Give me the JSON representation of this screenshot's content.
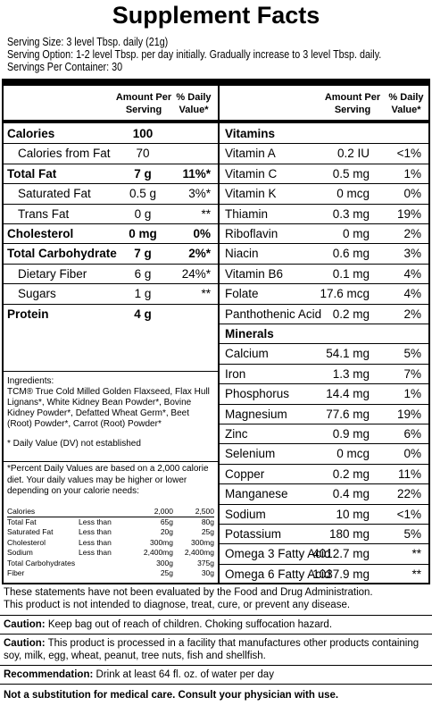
{
  "title": "Supplement Facts",
  "serving": [
    "Serving Size: 3 level Tbsp. daily (21g)",
    "Serving Option: 1-2 level Tbsp. per day initially. Gradually increase to 3 level Tbsp. daily.",
    "Servings Per Container: 30"
  ],
  "left": {
    "headers": [
      "Amount Per Serving",
      "% Daily Value*"
    ],
    "rows": [
      {
        "name": "Calories",
        "amount": "100"
      },
      {
        "name": "Calories from Fat",
        "amount": "70"
      },
      {
        "name": "Total Fat",
        "amount": "7 g",
        "dv": "11%*"
      },
      {
        "name": "Saturated Fat",
        "amount": "0.5 g",
        "dv": "3%*"
      },
      {
        "name": "Trans Fat",
        "amount": "0 g",
        "dv": "**"
      },
      {
        "name": "Cholesterol",
        "amount": "0 mg",
        "dv": "0%"
      },
      {
        "name": "Total Carbohydrate",
        "amount": "7 g",
        "dv": "2%*"
      },
      {
        "name": "Dietary Fiber",
        "amount": "6 g",
        "dv": "24%*"
      },
      {
        "name": "Sugars",
        "amount": "1 g",
        "dv": "**"
      },
      {
        "name": "Protein",
        "amount": "4 g"
      }
    ]
  },
  "right": {
    "headers": [
      "Amount Per Serving",
      "% Daily Value*"
    ],
    "vitamins_title": "Vitamins",
    "vitamins": [
      {
        "name": "Vitamin A",
        "amount": "0.2 IU",
        "dv": "<1%"
      },
      {
        "name": "Vitamin C",
        "amount": "0.5 mg",
        "dv": "1%"
      },
      {
        "name": "Vitamin K",
        "amount": "0 mcg",
        "dv": "0%"
      },
      {
        "name": "Thiamin",
        "amount": "0.3 mg",
        "dv": "19%"
      },
      {
        "name": "Riboflavin",
        "amount": "0 mg",
        "dv": "2%"
      },
      {
        "name": "Niacin",
        "amount": "0.6 mg",
        "dv": "3%"
      },
      {
        "name": "Vitamin B6",
        "amount": "0.1 mg",
        "dv": "4%"
      },
      {
        "name": "Folate",
        "amount": "17.6 mcg",
        "dv": "4%"
      },
      {
        "name": "Panthothenic Acid",
        "amount": "0.2 mg",
        "dv": "2%"
      }
    ],
    "minerals_title": "Minerals",
    "minerals": [
      {
        "name": "Calcium",
        "amount": "54.1 mg",
        "dv": "5%"
      },
      {
        "name": "Iron",
        "amount": "1.3 mg",
        "dv": "7%"
      },
      {
        "name": "Phosphorus",
        "amount": "14.4 mg",
        "dv": "1%"
      },
      {
        "name": "Magnesium",
        "amount": "77.6 mg",
        "dv": "19%"
      },
      {
        "name": "Zinc",
        "amount": "0.9 mg",
        "dv": "6%"
      },
      {
        "name": "Selenium",
        "amount": "0 mcg",
        "dv": "0%"
      },
      {
        "name": "Copper",
        "amount": "0.2 mg",
        "dv": "11%"
      },
      {
        "name": "Manganese",
        "amount": "0.4 mg",
        "dv": "22%"
      },
      {
        "name": "Sodium",
        "amount": "10 mg",
        "dv": "<1%"
      },
      {
        "name": "Potassium",
        "amount": "180 mg",
        "dv": "5%"
      },
      {
        "name": "Omega 3 Fatty Acid",
        "amount": "4012.7 mg",
        "dv": "**"
      },
      {
        "name": "Omega 6 Fatty Acid",
        "amount": "1037.9 mg",
        "dv": "**"
      }
    ]
  },
  "ingredients": {
    "label": "Ingredients:",
    "text": "TCM® True Cold Milled Golden Flaxseed, Flax Hull Lignans*, White Kidney Bean Powder*, Bovine Kidney Powder*, Defatted Wheat Germ*, Beet (Root) Powder*, Carrot (Root) Powder*",
    "note": "* Daily Value (DV) not established"
  },
  "footnote": {
    "text": "*Percent Daily Values are based on a 2,000 calorie diet. Your daily values may be higher or lower depending on your calorie needs:",
    "rows": [
      {
        "name": "Calories",
        "values": [
          "2,000",
          "2,500"
        ]
      },
      {
        "name": "Total Fat",
        "qualifier": "Less than",
        "values": [
          "65g",
          "80g"
        ]
      },
      {
        "name": "Saturated Fat",
        "qualifier": "Less than",
        "values": [
          "20g",
          "25g"
        ]
      },
      {
        "name": "Cholesterol",
        "qualifier": "Less than",
        "values": [
          "300mg",
          "300mg"
        ]
      },
      {
        "name": "Sodium",
        "qualifier": "Less than",
        "values": [
          "2,400mg",
          "2,400mg"
        ]
      },
      {
        "name": "Total Carbohydrates",
        "values": [
          "300g",
          "375g"
        ]
      },
      {
        "name": "Fiber",
        "values": [
          "25g",
          "30g"
        ]
      }
    ]
  },
  "bottom": {
    "disclaimer": [
      "These statements have not been evaluated by the Food and Drug Administration.",
      "This product is not intended to diagnose, treat, cure, or prevent any disease."
    ],
    "caution1": {
      "label": "Caution:",
      "text": "Keep bag out of reach of children. Choking suffocation hazard."
    },
    "caution2": {
      "label": "Caution:",
      "text": "This product is processed in a facility that manufactures other products containing soy, milk, egg, wheat, peanut, tree nuts, fish and shellfish."
    },
    "recommendation": {
      "label": "Recommendation:",
      "text": "Drink at least 64 fl. oz. of water per day"
    },
    "final": "Not a substitution for medical care. Consult your physician with use."
  }
}
